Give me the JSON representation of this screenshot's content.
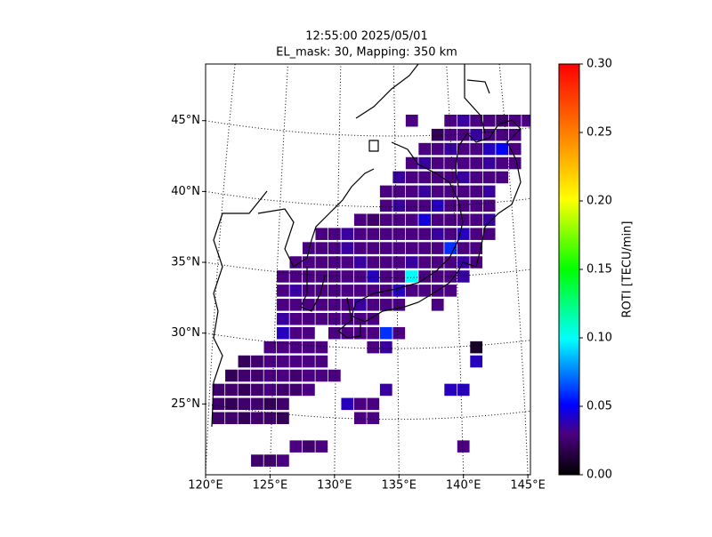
{
  "chart_data": {
    "type": "map",
    "title": "12:55:00 2025/05/01",
    "subtitle": "EL_mask: 30, Mapping: 350 km",
    "xlim": [
      120,
      145.2
    ],
    "ylim": [
      20,
      49
    ],
    "xticks": [
      {
        "value": 120,
        "label": "120°E"
      },
      {
        "value": 125,
        "label": "125°E"
      },
      {
        "value": 130,
        "label": "130°E"
      },
      {
        "value": 135,
        "label": "135°E"
      },
      {
        "value": 140,
        "label": "140°E"
      },
      {
        "value": 145,
        "label": "145°E"
      }
    ],
    "yticks": [
      {
        "value": 25,
        "label": "25°N"
      },
      {
        "value": 30,
        "label": "30°N"
      },
      {
        "value": 35,
        "label": "35°N"
      },
      {
        "value": 40,
        "label": "40°N"
      },
      {
        "value": 45,
        "label": "45°N"
      }
    ],
    "colorbar_label": "ROTI [TECU/min]",
    "clim": [
      0,
      0.3
    ],
    "cticks": [
      {
        "value": 0,
        "label": "0.00"
      },
      {
        "value": 0.05,
        "label": "0.05"
      },
      {
        "value": 0.1,
        "label": "0.10"
      },
      {
        "value": 0.15,
        "label": "0.15"
      },
      {
        "value": 0.2,
        "label": "0.20"
      },
      {
        "value": 0.25,
        "label": "0.25"
      },
      {
        "value": 0.3,
        "label": "0.30"
      }
    ],
    "rows": [
      {
        "lat": 45,
        "lon": [
          136,
          139,
          140,
          141,
          142,
          143,
          144,
          145
        ],
        "roti": [
          0.03,
          0.03,
          0.035,
          0.03,
          0.03,
          0.025,
          0.03,
          0.03
        ]
      },
      {
        "lat": 44,
        "lon": [
          138,
          139,
          140,
          141,
          142,
          143,
          144
        ],
        "roti": [
          0.02,
          0.03,
          0.03,
          0.035,
          0.03,
          0.03,
          0.03
        ]
      },
      {
        "lat": 43,
        "lon": [
          137,
          138,
          139,
          140,
          141,
          142,
          143,
          144
        ],
        "roti": [
          0.03,
          0.03,
          0.035,
          0.03,
          0.03,
          0.04,
          0.05,
          0.03
        ]
      },
      {
        "lat": 42,
        "lon": [
          136,
          137,
          138,
          139,
          140,
          141,
          142,
          143,
          144
        ],
        "roti": [
          0.03,
          0.035,
          0.03,
          0.03,
          0.03,
          0.03,
          0.035,
          0.03,
          0.03
        ]
      },
      {
        "lat": 41,
        "lon": [
          135,
          136,
          137,
          138,
          139,
          140,
          141,
          142,
          143
        ],
        "roti": [
          0.035,
          0.03,
          0.03,
          0.03,
          0.03,
          0.035,
          0.03,
          0.03,
          0.03
        ]
      },
      {
        "lat": 40,
        "lon": [
          134,
          135,
          136,
          137,
          138,
          139,
          140,
          141,
          142
        ],
        "roti": [
          0.03,
          0.03,
          0.03,
          0.035,
          0.03,
          0.03,
          0.03,
          0.03,
          0.035
        ]
      },
      {
        "lat": 39,
        "lon": [
          134,
          135,
          136,
          137,
          138,
          139,
          140,
          141,
          142
        ],
        "roti": [
          0.03,
          0.035,
          0.03,
          0.03,
          0.04,
          0.03,
          0.03,
          0.03,
          0.03
        ]
      },
      {
        "lat": 38,
        "lon": [
          132,
          133,
          134,
          135,
          136,
          137,
          138,
          139,
          140,
          141,
          142
        ],
        "roti": [
          0.03,
          0.025,
          0.03,
          0.03,
          0.03,
          0.045,
          0.03,
          0.03,
          0.03,
          0.03,
          0.035
        ]
      },
      {
        "lat": 37,
        "lon": [
          129,
          130,
          131,
          132,
          133,
          134,
          135,
          136,
          137,
          138,
          139,
          140,
          141,
          142
        ],
        "roti": [
          0.03,
          0.03,
          0.035,
          0.03,
          0.03,
          0.03,
          0.03,
          0.03,
          0.03,
          0.035,
          0.03,
          0.04,
          0.03,
          0.03
        ]
      },
      {
        "lat": 36,
        "lon": [
          128,
          129,
          130,
          131,
          132,
          133,
          134,
          135,
          136,
          137,
          138,
          139,
          140,
          141
        ],
        "roti": [
          0.03,
          0.03,
          0.03,
          0.035,
          0.03,
          0.03,
          0.03,
          0.03,
          0.03,
          0.03,
          0.03,
          0.06,
          0.03,
          0.03
        ]
      },
      {
        "lat": 35,
        "lon": [
          127,
          128,
          129,
          130,
          131,
          132,
          133,
          134,
          135,
          136,
          137,
          138,
          139,
          140,
          141
        ],
        "roti": [
          0.03,
          0.03,
          0.03,
          0.03,
          0.03,
          0.035,
          0.03,
          0.03,
          0.03,
          0.035,
          0.03,
          0.03,
          0.03,
          0.035,
          0.03
        ]
      },
      {
        "lat": 34,
        "lon": [
          126,
          127,
          128,
          129,
          130,
          131,
          132,
          133,
          134,
          135,
          136,
          137,
          138,
          139,
          140
        ],
        "roti": [
          0.03,
          0.03,
          0.03,
          0.03,
          0.03,
          0.03,
          0.03,
          0.04,
          0.03,
          0.03,
          0.1,
          0.03,
          0.03,
          0.03,
          0.035
        ]
      },
      {
        "lat": 33,
        "lon": [
          126,
          127,
          128,
          129,
          130,
          131,
          132,
          133,
          134,
          135,
          136,
          137,
          138,
          139
        ],
        "roti": [
          0.03,
          0.035,
          0.03,
          0.03,
          0.03,
          0.03,
          0.03,
          0.03,
          0.03,
          0.04,
          0.03,
          0.03,
          0.03,
          0.03
        ]
      },
      {
        "lat": 32,
        "lon": [
          126,
          127,
          128,
          129,
          130,
          131,
          132,
          133,
          134,
          135,
          138
        ],
        "roti": [
          0.03,
          0.03,
          0.03,
          0.03,
          0.03,
          0.03,
          0.035,
          0.03,
          0.03,
          0.03,
          0.03
        ]
      },
      {
        "lat": 31,
        "lon": [
          126,
          127,
          128,
          129,
          130,
          131,
          132,
          133
        ],
        "roti": [
          0.035,
          0.03,
          0.03,
          0.03,
          0.03,
          0.03,
          0.03,
          0.03
        ]
      },
      {
        "lat": 30,
        "lon": [
          126,
          127,
          128,
          130,
          131,
          132,
          133,
          134,
          135
        ],
        "roti": [
          0.04,
          0.03,
          0.03,
          0.03,
          0.03,
          0.03,
          0.03,
          0.06,
          0.03
        ]
      },
      {
        "lat": 29,
        "lon": [
          125,
          126,
          127,
          128,
          129,
          133,
          134,
          141
        ],
        "roti": [
          0.03,
          0.03,
          0.03,
          0.03,
          0.03,
          0.03,
          0.035,
          0.01
        ]
      },
      {
        "lat": 28,
        "lon": [
          123,
          124,
          125,
          126,
          127,
          128,
          129,
          141
        ],
        "roti": [
          0.02,
          0.025,
          0.03,
          0.03,
          0.03,
          0.03,
          0.03,
          0.04
        ]
      },
      {
        "lat": 27,
        "lon": [
          122,
          123,
          124,
          125,
          126,
          127,
          128,
          129,
          130
        ],
        "roti": [
          0.02,
          0.025,
          0.025,
          0.03,
          0.03,
          0.025,
          0.03,
          0.03,
          0.03
        ]
      },
      {
        "lat": 26,
        "lon": [
          121,
          122,
          123,
          124,
          125,
          126,
          127,
          128,
          134,
          139,
          140
        ],
        "roti": [
          0.025,
          0.025,
          0.02,
          0.025,
          0.03,
          0.025,
          0.025,
          0.03,
          0.035,
          0.04,
          0.04
        ]
      },
      {
        "lat": 25,
        "lon": [
          121,
          122,
          123,
          124,
          125,
          126,
          131,
          132,
          133
        ],
        "roti": [
          0.025,
          0.02,
          0.025,
          0.025,
          0.02,
          0.025,
          0.04,
          0.03,
          0.03
        ]
      },
      {
        "lat": 24,
        "lon": [
          121,
          122,
          123,
          124,
          125,
          126,
          132,
          133
        ],
        "roti": [
          0.025,
          0.025,
          0.02,
          0.025,
          0.025,
          0.02,
          0.03,
          0.03
        ]
      },
      {
        "lat": 22,
        "lon": [
          127,
          128,
          129,
          140
        ],
        "roti": [
          0.03,
          0.025,
          0.03,
          0.03
        ]
      },
      {
        "lat": 21,
        "lon": [
          124,
          125,
          126
        ],
        "roti": [
          0.025,
          0.025,
          0.03
        ]
      }
    ]
  }
}
